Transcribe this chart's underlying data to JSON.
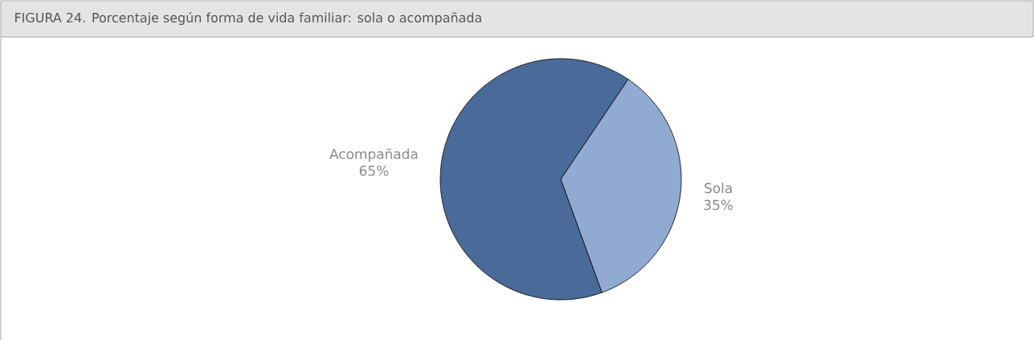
{
  "chart_data": {
    "type": "pie",
    "title": "FIGURA 24. Porcentaje según forma de vida familiar: sola o acompañada",
    "categories": [
      "Acompañada",
      "Sola"
    ],
    "values": [
      65,
      35
    ],
    "value_labels": [
      "65%",
      "35%"
    ],
    "colors": [
      "#4a6a9a",
      "#91aad2"
    ]
  }
}
